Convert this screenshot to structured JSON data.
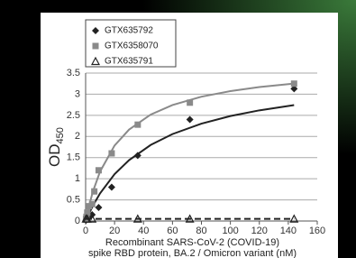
{
  "chart_data": {
    "type": "scatter",
    "xlabel": [
      "Recombinant SARS-CoV-2 (COVID-19)",
      "spike RBD protein, BA.2 / Omicron variant (nM)"
    ],
    "ylabel": "OD",
    "ylabel_subscript": "450",
    "xlim": [
      0,
      160
    ],
    "xticks": [
      0,
      20,
      40,
      60,
      80,
      100,
      120,
      140,
      160
    ],
    "ylim": [
      0,
      3.5
    ],
    "yticks": [
      0,
      0.5,
      1,
      1.5,
      2,
      2.5,
      3,
      3.5
    ],
    "grid": true,
    "legend": "upper left",
    "series": [
      {
        "name": "GTX635792",
        "marker": "diamond",
        "color": "#222222",
        "x": [
          0.28,
          0.56,
          1.13,
          2.25,
          4.5,
          9,
          18,
          36,
          72,
          144
        ],
        "values": [
          0.02,
          0.03,
          0.05,
          0.08,
          0.15,
          0.32,
          0.8,
          1.55,
          2.4,
          3.13
        ],
        "fit": {
          "color": "#222222",
          "dash": false,
          "x": [
            0,
            2,
            5,
            10,
            20,
            30,
            45,
            60,
            80,
            100,
            120,
            144
          ],
          "values": [
            0,
            0.153,
            0.36,
            0.655,
            1.108,
            1.44,
            1.8,
            2.057,
            2.304,
            2.483,
            2.618,
            2.743
          ]
        }
      },
      {
        "name": "GTX6358070",
        "marker": "square",
        "color": "#8a8a8a",
        "x": [
          0.28,
          0.56,
          1.13,
          2.25,
          4.5,
          6,
          9,
          18,
          36,
          72,
          144
        ],
        "values": [
          0.05,
          0.1,
          0.2,
          0.35,
          0.4,
          0.7,
          1.2,
          1.6,
          2.28,
          2.8,
          3.25
        ],
        "fit": {
          "color": "#8a8a8a",
          "dash": false,
          "x": [
            0,
            2,
            5,
            10,
            20,
            30,
            45,
            60,
            80,
            100,
            120,
            144
          ],
          "values": [
            0,
            0.3125,
            0.694,
            1.172,
            1.786,
            2.163,
            2.519,
            2.744,
            2.941,
            3.074,
            3.169,
            3.253
          ]
        }
      },
      {
        "name": "GTX635791",
        "marker": "triangle",
        "color": "#222222",
        "x": [
          0.28,
          1.13,
          4.5,
          36,
          72,
          144
        ],
        "values": [
          0.05,
          0.05,
          0.05,
          0.05,
          0.05,
          0.05
        ],
        "fit": {
          "color": "#222222",
          "dash": true,
          "x": [
            0,
            144
          ],
          "values": [
            0.05,
            0.05
          ]
        }
      }
    ]
  }
}
